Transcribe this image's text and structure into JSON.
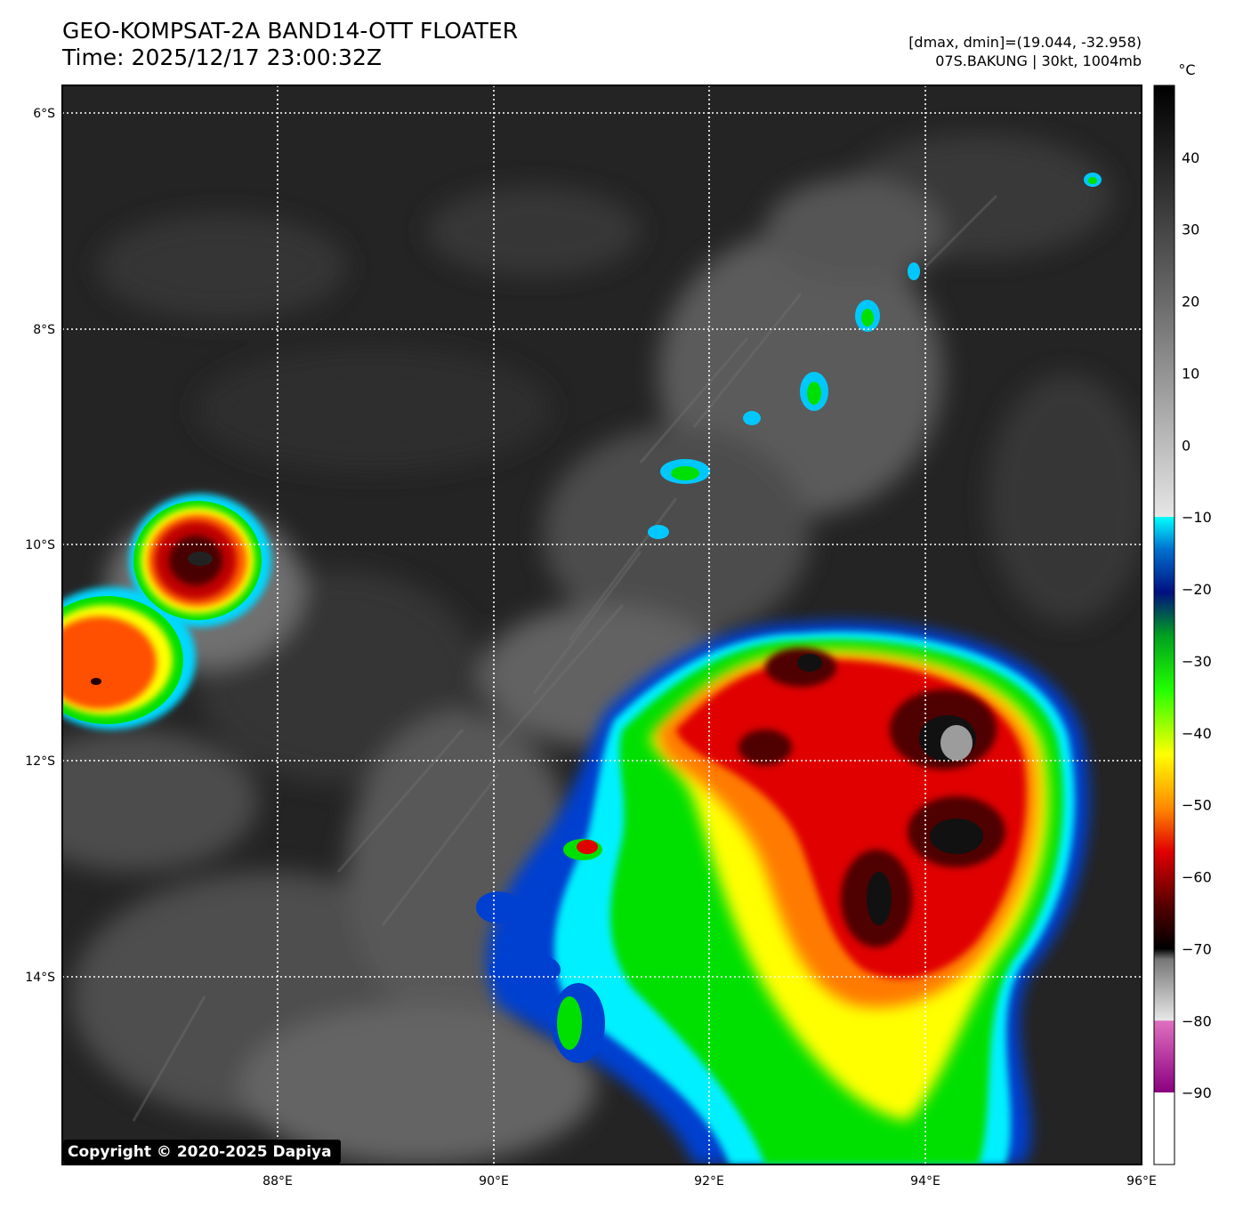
{
  "header": {
    "title_line1": "GEO-KOMPSAT-2A BAND14-OTT FLOATER",
    "title_line2": "Time: 2025/12/17 23:00:32Z",
    "stats_line": "[dmax, dmin]=(19.044, -32.958)",
    "storm_line": "07S.BAKUNG | 30kt, 1004mb"
  },
  "map": {
    "lat_labels": [
      "6°S",
      "8°S",
      "10°S",
      "12°S",
      "14°S"
    ],
    "lon_labels": [
      "88°E",
      "90°E",
      "92°E",
      "94°E",
      "96°E"
    ],
    "copyright": "Copyright © 2020-2025 Dapiya"
  },
  "colorbar": {
    "unit": "°C",
    "ticks": [
      "40",
      "30",
      "20",
      "10",
      "0",
      "−10",
      "−20",
      "−30",
      "−40",
      "−50",
      "−60",
      "−70",
      "−80",
      "−90"
    ],
    "min": -100,
    "max": 50
  },
  "colors": {
    "cold_top": "#1a0000",
    "red": "#e00000",
    "orange": "#ff8a00",
    "yellow": "#ffff00",
    "green": "#00e000",
    "blue": "#0030c0",
    "cyan": "#00f0ff",
    "magenta": "#a000a0",
    "cloud_gray": "#9a9a9a",
    "ocean_dark": "#222222"
  }
}
